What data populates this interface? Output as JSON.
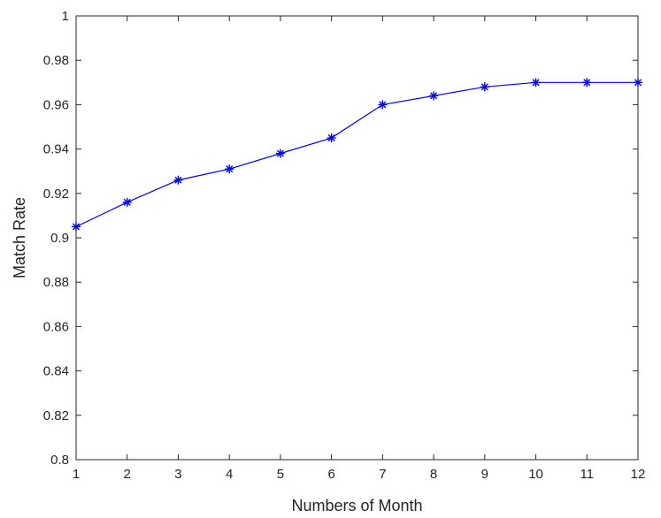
{
  "chart_data": {
    "type": "line",
    "title": "",
    "xlabel": "Numbers of Month",
    "ylabel": "Match Rate",
    "xlim": [
      1,
      12
    ],
    "ylim": [
      0.8,
      1
    ],
    "xticks": [
      1,
      2,
      3,
      4,
      5,
      6,
      7,
      8,
      9,
      10,
      11,
      12
    ],
    "yticks": [
      0.8,
      0.82,
      0.84,
      0.86,
      0.88,
      0.9,
      0.92,
      0.94,
      0.96,
      0.98,
      1
    ],
    "ytick_labels": [
      "0.8",
      "0.82",
      "0.84",
      "0.86",
      "0.88",
      "0.9",
      "0.92",
      "0.94",
      "0.96",
      "0.98",
      "1"
    ],
    "grid": false,
    "series": [
      {
        "color": "#0000ff",
        "marker": "asterisk",
        "x": [
          1,
          2,
          3,
          4,
          5,
          6,
          7,
          8,
          9,
          10,
          11,
          12
        ],
        "y": [
          0.905,
          0.916,
          0.926,
          0.931,
          0.938,
          0.945,
          0.96,
          0.964,
          0.968,
          0.97,
          0.97,
          0.97
        ]
      }
    ]
  }
}
